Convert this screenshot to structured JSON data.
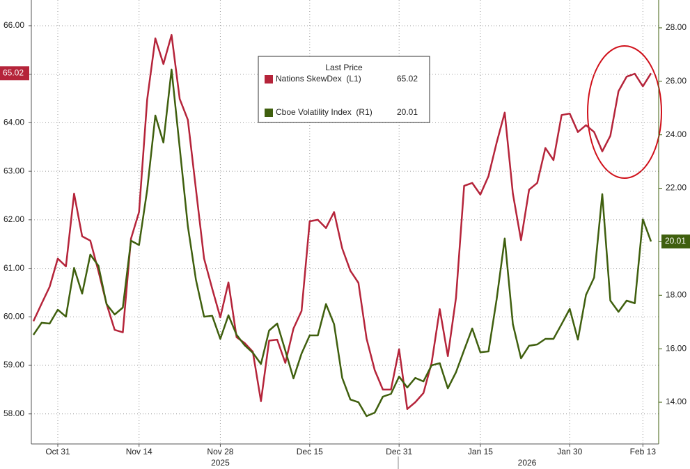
{
  "chart_data": {
    "type": "line",
    "categories": [
      null,
      null,
      null,
      "Oct 31",
      null,
      null,
      null,
      null,
      null,
      null,
      null,
      null,
      null,
      "Nov 14",
      null,
      null,
      null,
      null,
      null,
      null,
      null,
      null,
      null,
      "Nov 28",
      null,
      null,
      null,
      null,
      null,
      null,
      null,
      null,
      null,
      null,
      "Dec 15",
      null,
      null,
      null,
      null,
      null,
      null,
      null,
      null,
      null,
      null,
      "Dec 31",
      null,
      null,
      null,
      null,
      null,
      null,
      null,
      null,
      null,
      "Jan 15",
      null,
      null,
      null,
      null,
      null,
      null,
      null,
      null,
      null,
      null,
      "Jan 30",
      null,
      null,
      null,
      null,
      null,
      null,
      null,
      null,
      "Feb 13",
      null
    ],
    "year_labels": [
      "2025",
      "2026"
    ],
    "legend_title": "Last Price",
    "series": [
      {
        "name": "Nations SkewDex  (L1)",
        "color": "#b5243a",
        "axis": "y",
        "last_price": 65.02,
        "values": [
          59.91,
          60.27,
          60.62,
          61.2,
          61.04,
          62.54,
          61.66,
          61.57,
          60.94,
          60.27,
          59.73,
          59.68,
          61.61,
          62.16,
          64.48,
          65.74,
          65.21,
          65.81,
          64.49,
          64.06,
          62.63,
          61.2,
          60.58,
          59.99,
          60.71,
          59.58,
          59.46,
          59.28,
          58.26,
          59.51,
          59.53,
          59.05,
          59.76,
          60.12,
          61.97,
          62.0,
          61.83,
          62.16,
          61.41,
          60.95,
          60.7,
          59.55,
          58.9,
          58.5,
          58.5,
          59.33,
          58.1,
          58.24,
          58.43,
          59.05,
          60.16,
          59.19,
          60.39,
          62.7,
          62.76,
          62.52,
          62.9,
          63.59,
          64.21,
          62.54,
          61.58,
          62.62,
          62.76,
          63.48,
          63.23,
          64.16,
          64.19,
          63.81,
          63.95,
          63.81,
          63.41,
          63.73,
          64.65,
          64.95,
          65.01,
          64.75,
          65.02
        ]
      },
      {
        "name": "Cboe Volatility Index  (R1)",
        "color": "#3f5f0e",
        "axis": "y2",
        "last_price": 20.01,
        "values": [
          16.52,
          16.97,
          16.94,
          17.46,
          17.2,
          19.02,
          18.06,
          19.52,
          19.1,
          17.67,
          17.28,
          17.54,
          20.04,
          19.88,
          21.94,
          24.72,
          23.71,
          26.44,
          23.52,
          20.58,
          18.58,
          17.2,
          17.23,
          16.37,
          17.25,
          16.52,
          16.13,
          15.85,
          15.43,
          16.68,
          16.94,
          15.93,
          14.89,
          15.82,
          16.5,
          16.5,
          17.67,
          16.92,
          14.91,
          14.1,
          14.0,
          13.48,
          13.61,
          14.21,
          14.31,
          14.96,
          14.55,
          14.91,
          14.78,
          15.38,
          15.46,
          14.52,
          15.12,
          15.95,
          16.76,
          15.87,
          15.9,
          17.85,
          20.12,
          16.92,
          15.64,
          16.11,
          16.16,
          16.37,
          16.37,
          16.92,
          17.49,
          16.34,
          18.01,
          18.66,
          21.78,
          17.8,
          17.38,
          17.8,
          17.7,
          20.84,
          20.01
        ]
      }
    ],
    "ylim": [
      57.38,
      66.53
    ],
    "yticks": [
      {
        "value": 58,
        "label": "58.00"
      },
      {
        "value": 59,
        "label": "59.00"
      },
      {
        "value": 60,
        "label": "60.00"
      },
      {
        "value": 61,
        "label": "61.00"
      },
      {
        "value": 62,
        "label": "62.00"
      },
      {
        "value": 63,
        "label": "63.00"
      },
      {
        "value": 64,
        "label": "64.00"
      },
      {
        "value": 65,
        "label": "65.00"
      },
      {
        "value": 66,
        "label": "66.00"
      }
    ],
    "y2lim": [
      12.44,
      29.04
    ],
    "y2ticks": [
      {
        "value": 14,
        "label": "14.00"
      },
      {
        "value": 16,
        "label": "16.00"
      },
      {
        "value": 18,
        "label": "18.00"
      },
      {
        "value": 20,
        "label": "20.00"
      },
      {
        "value": 22,
        "label": "22.00"
      },
      {
        "value": 24,
        "label": "24.00"
      },
      {
        "value": 26,
        "label": "26.00"
      },
      {
        "value": 28,
        "label": "28.00"
      }
    ],
    "grid": true
  }
}
